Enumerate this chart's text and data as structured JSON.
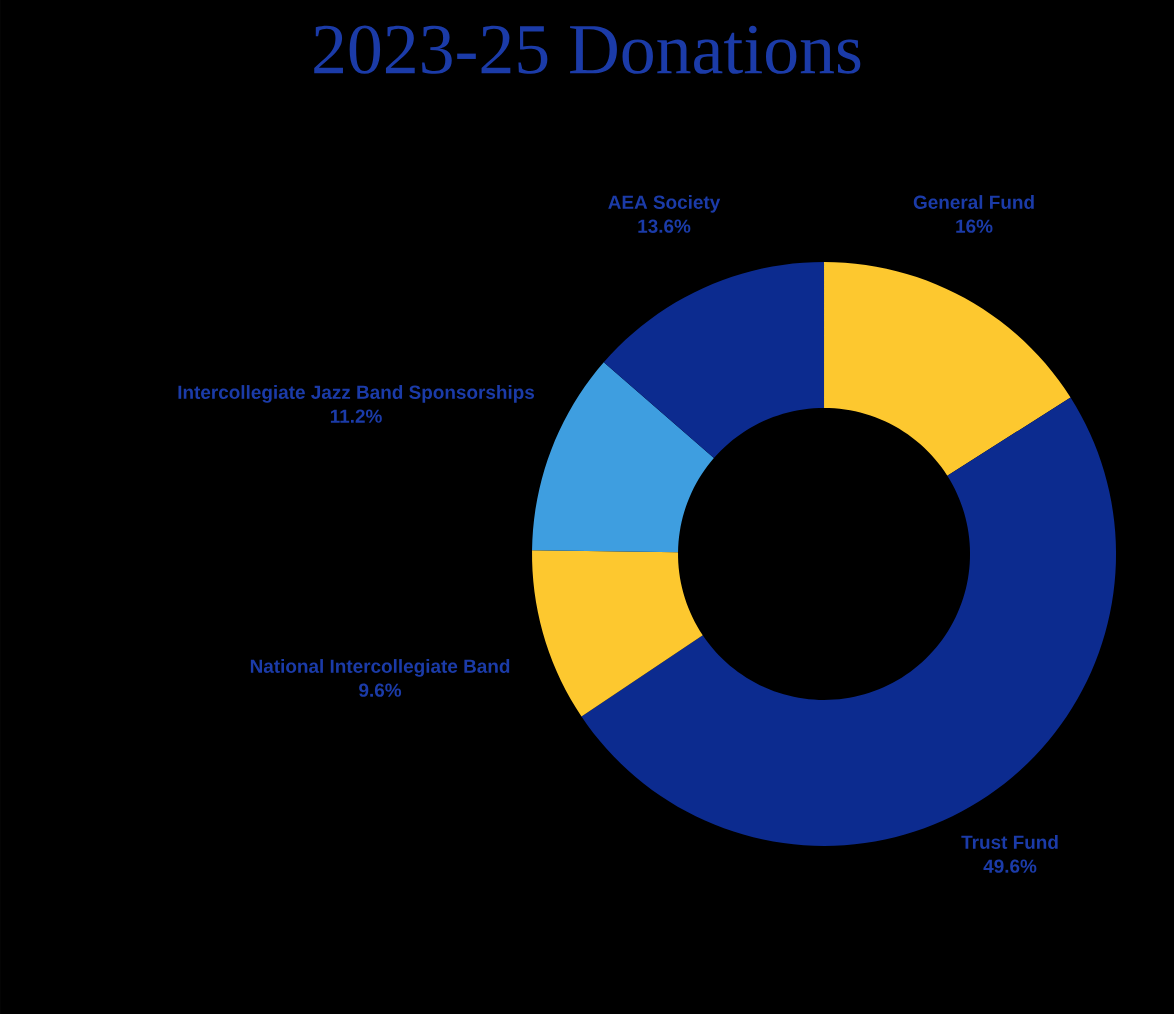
{
  "chart_data": {
    "type": "donut",
    "title": "2023-25 Donations",
    "categories": [
      "General Fund",
      "Trust Fund",
      "National Intercollegiate Band",
      "Intercollegiate Jazz Band Sponsorships",
      "AEA Society"
    ],
    "values": [
      16,
      49.6,
      9.6,
      11.2,
      13.6
    ],
    "value_labels": [
      "16%",
      "49.6%",
      "9.6%",
      "11.2%",
      "13.6%"
    ],
    "colors": [
      "#fdc82f",
      "#0c2b8f",
      "#fdc82f",
      "#3e9ee0",
      "#0c2b8f"
    ]
  }
}
